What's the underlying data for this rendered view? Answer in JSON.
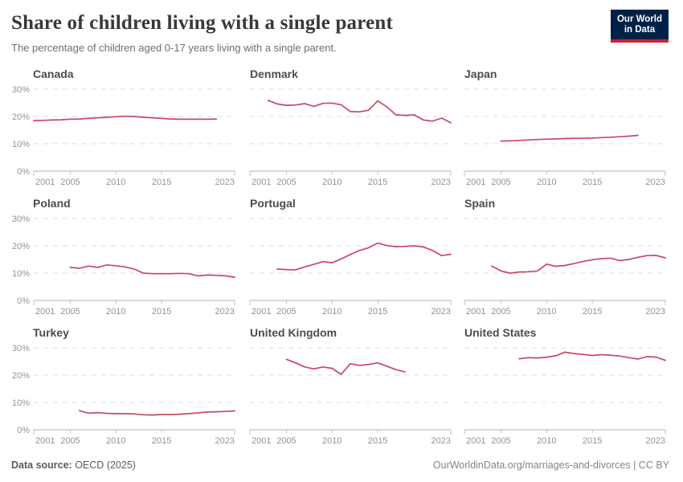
{
  "header": {
    "title": "Share of children living with a single parent",
    "subtitle": "The percentage of children aged 0-17 years living with a single parent.",
    "logo": {
      "line1": "Our World",
      "line2": "in Data"
    }
  },
  "colors": {
    "line": "#c7495f",
    "grid": "#dcdcdc",
    "axis": "#b0b0b0",
    "tick": "#c2c2c2",
    "tick_label": "#939393"
  },
  "axes": {
    "x_range": [
      2001,
      2023
    ],
    "x_ticks": [
      2001,
      2005,
      2010,
      2015,
      2023
    ],
    "y_range": [
      0,
      32
    ],
    "y_gridlines": [
      10,
      20,
      30
    ],
    "y_tick_labels": [
      "0%",
      "10%",
      "20%",
      "30%"
    ],
    "grid_on": true
  },
  "chart_data": [
    {
      "type": "line",
      "title": "Canada",
      "y_axis_labels": true,
      "x": [
        2001,
        2002,
        2003,
        2004,
        2005,
        2006,
        2007,
        2008,
        2009,
        2010,
        2011,
        2012,
        2013,
        2014,
        2015,
        2016,
        2017,
        2018,
        2019,
        2020,
        2021
      ],
      "y": [
        18.5,
        18.6,
        18.7,
        18.8,
        19.0,
        19.1,
        19.3,
        19.5,
        19.7,
        19.9,
        20.1,
        20.0,
        19.7,
        19.5,
        19.3,
        19.1,
        19.0,
        19.0,
        19.0,
        19.0,
        19.1
      ]
    },
    {
      "type": "line",
      "title": "Denmark",
      "y_axis_labels": false,
      "x": [
        2003,
        2004,
        2005,
        2006,
        2007,
        2008,
        2009,
        2010,
        2011,
        2012,
        2013,
        2014,
        2015,
        2016,
        2017,
        2018,
        2019,
        2020,
        2021,
        2022,
        2023
      ],
      "y": [
        25.9,
        24.6,
        24.1,
        24.2,
        24.7,
        23.7,
        24.8,
        24.9,
        24.3,
        21.8,
        21.7,
        22.3,
        25.7,
        23.5,
        20.6,
        20.4,
        20.6,
        18.7,
        18.3,
        19.4,
        17.7
      ]
    },
    {
      "type": "line",
      "title": "Japan",
      "y_axis_labels": false,
      "x": [
        2005,
        2006,
        2007,
        2008,
        2009,
        2010,
        2011,
        2012,
        2013,
        2014,
        2015,
        2016,
        2017,
        2018,
        2019,
        2020
      ],
      "y": [
        11.0,
        11.1,
        11.25,
        11.4,
        11.55,
        11.7,
        11.8,
        11.9,
        12.0,
        12.0,
        12.1,
        12.25,
        12.4,
        12.6,
        12.8,
        13.1
      ]
    },
    {
      "type": "line",
      "title": "Poland",
      "y_axis_labels": true,
      "x": [
        2005,
        2006,
        2007,
        2008,
        2009,
        2010,
        2011,
        2012,
        2013,
        2014,
        2015,
        2016,
        2017,
        2018,
        2019,
        2020,
        2021,
        2022,
        2023
      ],
      "y": [
        12.1,
        11.8,
        12.6,
        12.1,
        13.0,
        12.7,
        12.3,
        11.5,
        10.0,
        9.8,
        9.8,
        9.8,
        9.9,
        9.8,
        9.0,
        9.3,
        9.2,
        9.0,
        8.5
      ]
    },
    {
      "type": "line",
      "title": "Portugal",
      "y_axis_labels": false,
      "x": [
        2004,
        2005,
        2006,
        2007,
        2008,
        2009,
        2010,
        2011,
        2012,
        2013,
        2014,
        2015,
        2016,
        2017,
        2018,
        2019,
        2020,
        2021,
        2022,
        2023
      ],
      "y": [
        11.5,
        11.3,
        11.2,
        12.3,
        13.2,
        14.2,
        13.8,
        15.2,
        16.8,
        18.3,
        19.3,
        21.0,
        20.1,
        19.7,
        19.8,
        20.0,
        19.6,
        18.3,
        16.4,
        16.9
      ]
    },
    {
      "type": "line",
      "title": "Spain",
      "y_axis_labels": false,
      "x": [
        2004,
        2005,
        2006,
        2007,
        2008,
        2009,
        2010,
        2011,
        2012,
        2013,
        2014,
        2015,
        2016,
        2017,
        2018,
        2019,
        2020,
        2021,
        2022,
        2023
      ],
      "y": [
        12.6,
        10.8,
        10.0,
        10.4,
        10.5,
        10.8,
        13.3,
        12.5,
        12.8,
        13.5,
        14.3,
        14.9,
        15.3,
        15.5,
        14.6,
        15.0,
        15.8,
        16.4,
        16.5,
        15.6
      ]
    },
    {
      "type": "line",
      "title": "Turkey",
      "y_axis_labels": true,
      "x": [
        2006,
        2007,
        2008,
        2009,
        2010,
        2011,
        2012,
        2013,
        2014,
        2015,
        2016,
        2017,
        2018,
        2019,
        2020,
        2021,
        2022,
        2023
      ],
      "y": [
        7.0,
        6.1,
        6.3,
        6.0,
        5.9,
        5.9,
        5.8,
        5.5,
        5.4,
        5.6,
        5.6,
        5.7,
        5.9,
        6.2,
        6.5,
        6.6,
        6.7,
        6.9
      ]
    },
    {
      "type": "line",
      "title": "United Kingdom",
      "y_axis_labels": false,
      "x": [
        2005,
        2006,
        2007,
        2008,
        2009,
        2010,
        2011,
        2012,
        2013,
        2014,
        2015,
        2016,
        2017,
        2018
      ],
      "y": [
        25.8,
        24.5,
        23.0,
        22.3,
        23.0,
        22.5,
        20.3,
        24.2,
        23.6,
        23.9,
        24.5,
        23.3,
        22.0,
        21.2
      ]
    },
    {
      "type": "line",
      "title": "United States",
      "y_axis_labels": false,
      "x": [
        2007,
        2008,
        2009,
        2010,
        2011,
        2012,
        2013,
        2014,
        2015,
        2016,
        2017,
        2018,
        2019,
        2020,
        2021,
        2022,
        2023
      ],
      "y": [
        26.0,
        26.4,
        26.3,
        26.6,
        27.1,
        28.4,
        27.9,
        27.6,
        27.2,
        27.5,
        27.3,
        27.0,
        26.4,
        25.9,
        26.8,
        26.6,
        25.4
      ]
    }
  ],
  "footer": {
    "source_label": "Data source:",
    "source_value": " OECD (2025)",
    "link": "OurWorldinData.org/marriages-and-divorces",
    "separator": " | ",
    "license": "CC BY"
  }
}
